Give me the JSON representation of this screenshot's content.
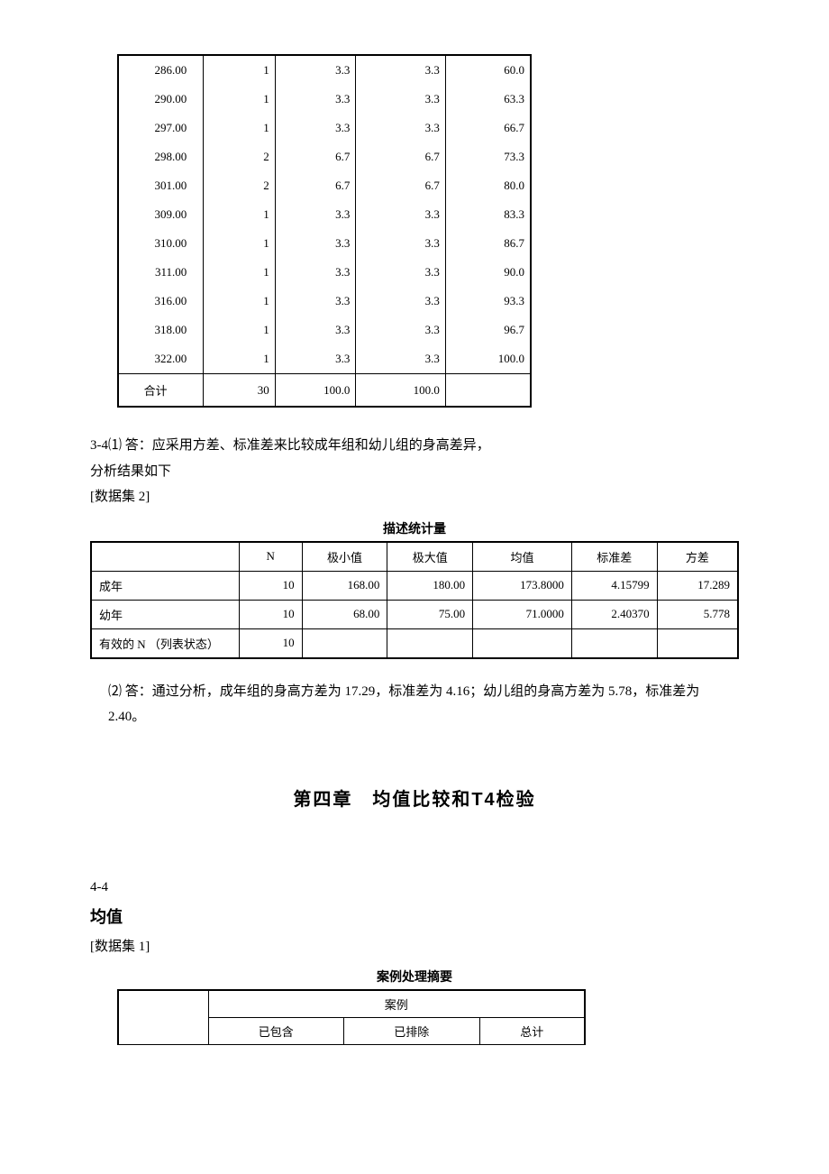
{
  "freq_table": {
    "rows": [
      {
        "val": "286.00",
        "freq": "1",
        "pct": "3.3",
        "vpct": "3.3",
        "cpct": "60.0"
      },
      {
        "val": "290.00",
        "freq": "1",
        "pct": "3.3",
        "vpct": "3.3",
        "cpct": "63.3"
      },
      {
        "val": "297.00",
        "freq": "1",
        "pct": "3.3",
        "vpct": "3.3",
        "cpct": "66.7"
      },
      {
        "val": "298.00",
        "freq": "2",
        "pct": "6.7",
        "vpct": "6.7",
        "cpct": "73.3"
      },
      {
        "val": "301.00",
        "freq": "2",
        "pct": "6.7",
        "vpct": "6.7",
        "cpct": "80.0"
      },
      {
        "val": "309.00",
        "freq": "1",
        "pct": "3.3",
        "vpct": "3.3",
        "cpct": "83.3"
      },
      {
        "val": "310.00",
        "freq": "1",
        "pct": "3.3",
        "vpct": "3.3",
        "cpct": "86.7"
      },
      {
        "val": "311.00",
        "freq": "1",
        "pct": "3.3",
        "vpct": "3.3",
        "cpct": "90.0"
      },
      {
        "val": "316.00",
        "freq": "1",
        "pct": "3.3",
        "vpct": "3.3",
        "cpct": "93.3"
      },
      {
        "val": "318.00",
        "freq": "1",
        "pct": "3.3",
        "vpct": "3.3",
        "cpct": "96.7"
      },
      {
        "val": "322.00",
        "freq": "1",
        "pct": "3.3",
        "vpct": "3.3",
        "cpct": "100.0"
      }
    ],
    "total_label": "合计",
    "total_freq": "30",
    "total_pct": "100.0",
    "total_vpct": "100.0",
    "total_cpct": ""
  },
  "q34": {
    "line1": "3-4⑴ 答：应采用方差、标准差来比较成年组和幼儿组的身高差异，",
    "line2": "分析结果如下",
    "line3": "[数据集 2]"
  },
  "desc_stats": {
    "title": "描述统计量",
    "headers": [
      "",
      "N",
      "极小值",
      "极大值",
      "均值",
      "标准差",
      "方差"
    ],
    "rows": [
      {
        "label": "成年",
        "n": "10",
        "min": "168.00",
        "max": "180.00",
        "mean": "173.8000",
        "std": "4.15799",
        "var": "17.289"
      },
      {
        "label": "幼年",
        "n": "10",
        "min": "68.00",
        "max": "75.00",
        "mean": "71.0000",
        "std": "2.40370",
        "var": "5.778"
      },
      {
        "label": "有效的 N （列表状态）",
        "n": "10",
        "min": "",
        "max": "",
        "mean": "",
        "std": "",
        "var": ""
      }
    ]
  },
  "answer2": "⑵ 答：通过分析，成年组的身高方差为 17.29，标准差为 4.16；幼儿组的身高方差为 5.78，标准差为 2.40。",
  "chapter_title": "第四章　均值比较和T4检验",
  "sec44": {
    "num": "4-4",
    "mean_title": "均值",
    "dataset": "[数据集 1]"
  },
  "case_summary": {
    "title": "案例处理摘要",
    "header1": "案例",
    "sub_headers": [
      "已包含",
      "已排除",
      "总计"
    ]
  }
}
